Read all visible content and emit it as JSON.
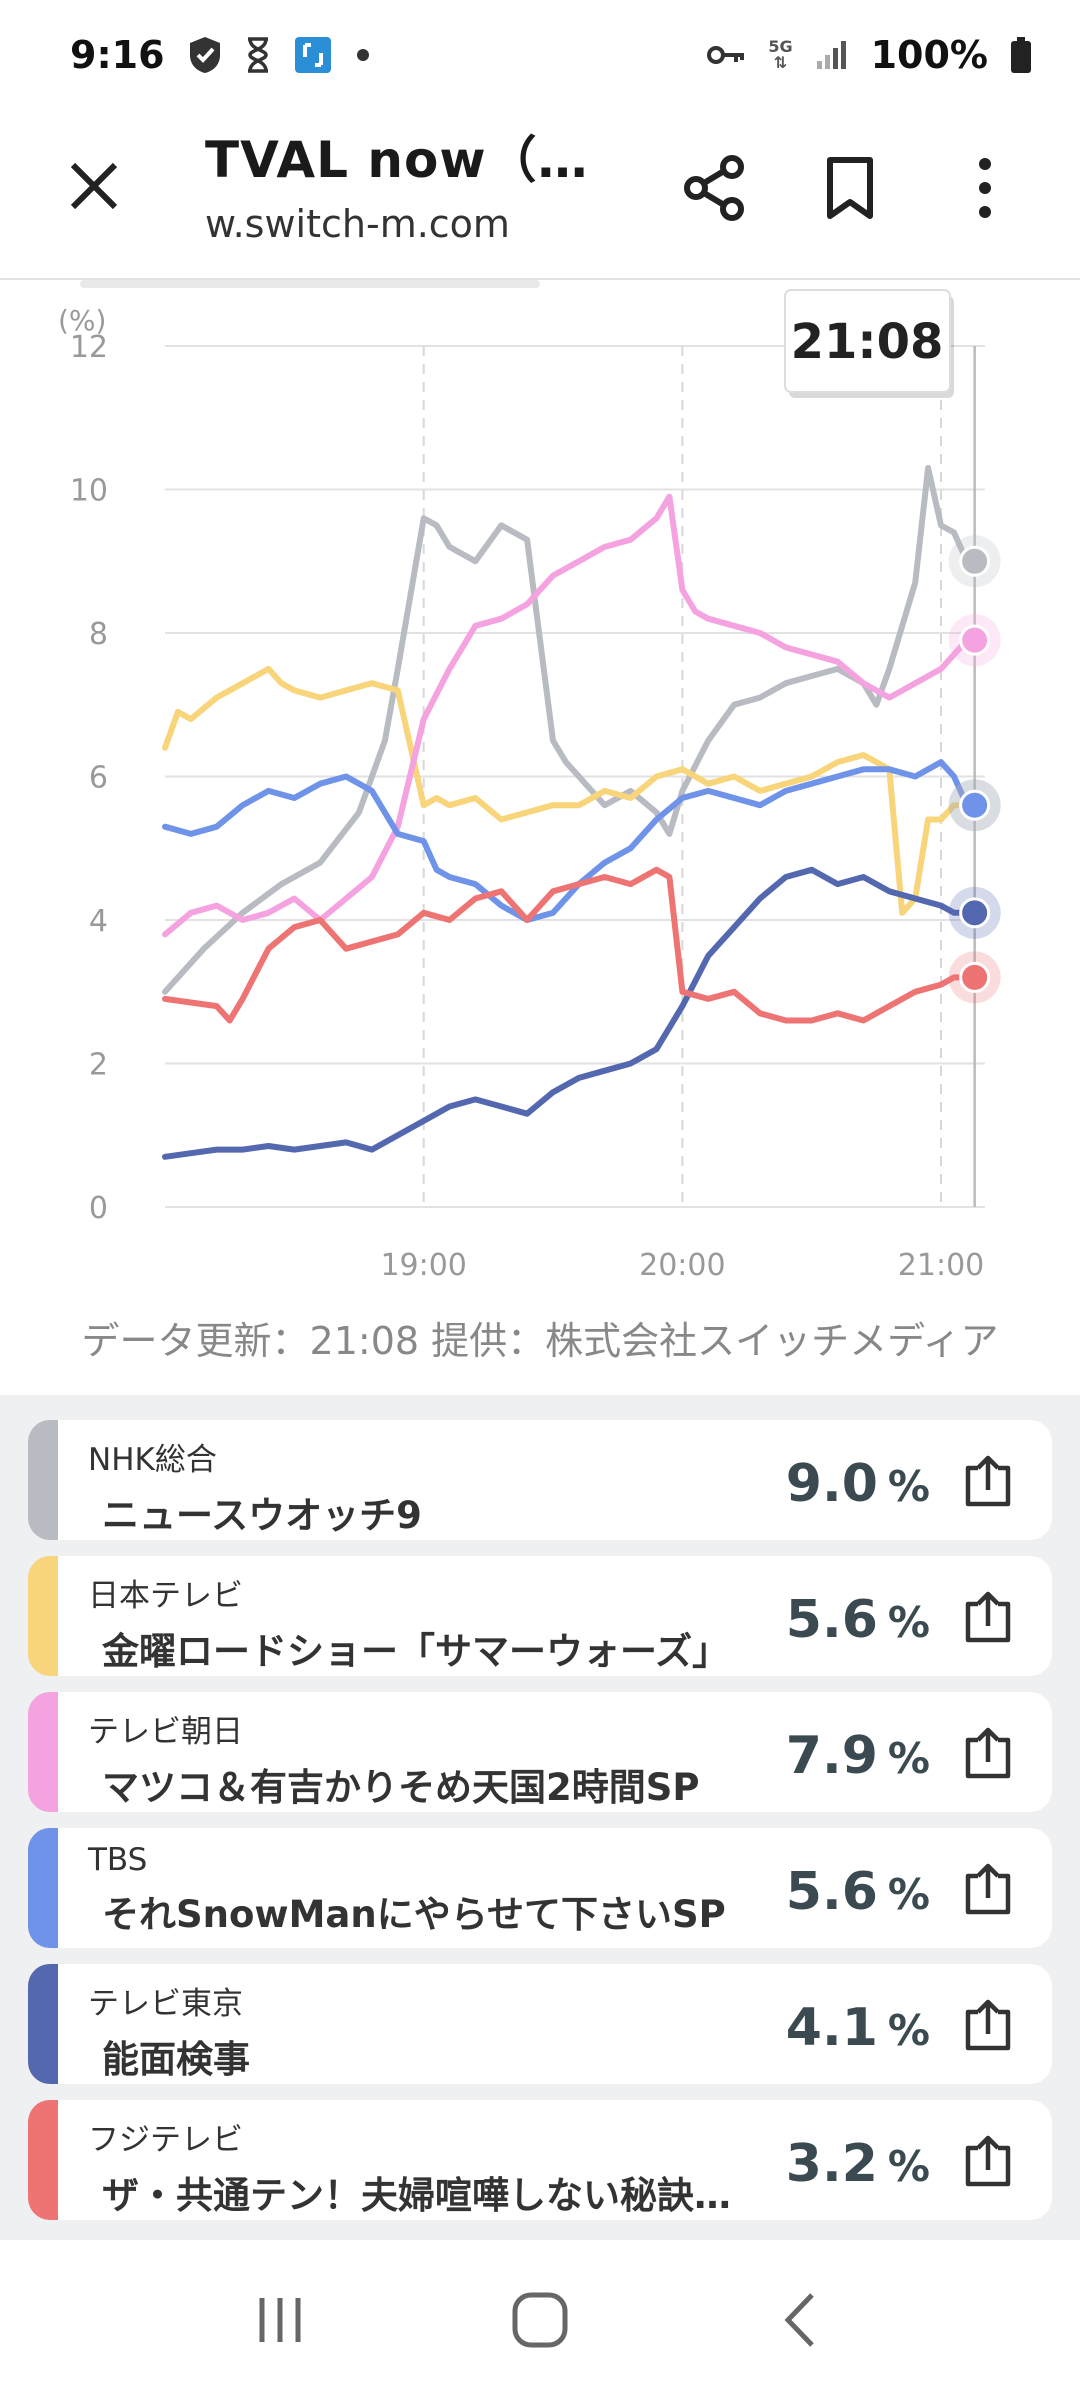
{
  "status": {
    "time": "9:16",
    "battery": "100%",
    "network": "5G",
    "icons": [
      "shield-icon",
      "hourglass-icon",
      "app-badge-icon",
      "dot-icon",
      "key-icon",
      "5g-icon",
      "signal-icon",
      "battery-icon"
    ]
  },
  "toolbar": {
    "title": "TVAL now（…",
    "url": "w.switch-m.com",
    "close_icon": "close-icon",
    "share_icon": "share-icon",
    "bookmark_icon": "bookmark-icon",
    "menu_icon": "more-vert-icon"
  },
  "chart_data": {
    "type": "line",
    "tooltip": "21:08",
    "yunit": "(%)",
    "ylim": [
      0,
      12
    ],
    "yticks": [
      "0",
      "2",
      "4",
      "6",
      "8",
      "10",
      "12"
    ],
    "xticks": [
      {
        "t": 19,
        "label": "19:00"
      },
      {
        "t": 20,
        "label": "20:00"
      },
      {
        "t": 21,
        "label": "21:00"
      }
    ],
    "xlim": [
      18.0,
      21.17
    ],
    "cursor_x": 21.13,
    "series": [
      {
        "color": "#b8bcc2",
        "x": [
          18,
          18.15,
          18.3,
          18.45,
          18.6,
          18.75,
          18.85,
          18.9,
          19,
          19.05,
          19.1,
          19.2,
          19.3,
          19.4,
          19.5,
          19.55,
          19.6,
          19.7,
          19.8,
          19.9,
          19.95,
          20,
          20.1,
          20.2,
          20.3,
          20.4,
          20.5,
          20.6,
          20.7,
          20.75,
          20.8,
          20.9,
          20.95,
          21,
          21.05,
          21.1
        ],
        "y": [
          3.0,
          3.6,
          4.1,
          4.5,
          4.8,
          5.5,
          6.5,
          7.5,
          9.6,
          9.5,
          9.2,
          9.0,
          9.5,
          9.3,
          6.5,
          6.2,
          6.0,
          5.6,
          5.8,
          5.5,
          5.2,
          5.8,
          6.5,
          7.0,
          7.1,
          7.3,
          7.4,
          7.5,
          7.3,
          7.0,
          7.5,
          8.7,
          10.3,
          9.5,
          9.4,
          9.0
        ]
      },
      {
        "color": "#f8d57a",
        "x": [
          18,
          18.05,
          18.1,
          18.2,
          18.3,
          18.4,
          18.45,
          18.5,
          18.6,
          18.7,
          18.8,
          18.9,
          19,
          19.05,
          19.1,
          19.2,
          19.3,
          19.4,
          19.5,
          19.6,
          19.7,
          19.8,
          19.9,
          20,
          20.1,
          20.2,
          20.3,
          20.4,
          20.5,
          20.6,
          20.7,
          20.8,
          20.85,
          20.9,
          20.95,
          21,
          21.05,
          21.1
        ],
        "y": [
          6.4,
          6.9,
          6.8,
          7.1,
          7.3,
          7.5,
          7.3,
          7.2,
          7.1,
          7.2,
          7.3,
          7.2,
          5.6,
          5.7,
          5.6,
          5.7,
          5.4,
          5.5,
          5.6,
          5.6,
          5.8,
          5.7,
          6.0,
          6.1,
          5.9,
          6.0,
          5.8,
          5.9,
          6.0,
          6.2,
          6.3,
          6.1,
          4.1,
          4.3,
          5.4,
          5.4,
          5.6,
          5.6
        ]
      },
      {
        "color": "#f5a3e0",
        "x": [
          18,
          18.1,
          18.2,
          18.3,
          18.4,
          18.5,
          18.6,
          18.7,
          18.8,
          18.9,
          19,
          19.1,
          19.2,
          19.3,
          19.4,
          19.5,
          19.6,
          19.7,
          19.8,
          19.9,
          19.95,
          20,
          20.05,
          20.1,
          20.2,
          20.3,
          20.4,
          20.5,
          20.6,
          20.7,
          20.8,
          20.9,
          21,
          21.05,
          21.1
        ],
        "y": [
          3.8,
          4.1,
          4.2,
          4.0,
          4.1,
          4.3,
          4.0,
          4.3,
          4.6,
          5.3,
          6.8,
          7.5,
          8.1,
          8.2,
          8.4,
          8.8,
          9.0,
          9.2,
          9.3,
          9.6,
          9.9,
          8.6,
          8.3,
          8.2,
          8.1,
          8.0,
          7.8,
          7.7,
          7.6,
          7.3,
          7.1,
          7.3,
          7.5,
          7.7,
          7.9
        ]
      },
      {
        "color": "#6e93e8",
        "x": [
          18,
          18.1,
          18.2,
          18.3,
          18.4,
          18.5,
          18.6,
          18.7,
          18.8,
          18.9,
          19,
          19.05,
          19.1,
          19.2,
          19.3,
          19.4,
          19.5,
          19.6,
          19.7,
          19.8,
          19.9,
          20,
          20.1,
          20.2,
          20.3,
          20.4,
          20.5,
          20.6,
          20.7,
          20.8,
          20.9,
          21,
          21.05,
          21.1
        ],
        "y": [
          5.3,
          5.2,
          5.3,
          5.6,
          5.8,
          5.7,
          5.9,
          6.0,
          5.8,
          5.2,
          5.1,
          4.7,
          4.6,
          4.5,
          4.2,
          4.0,
          4.1,
          4.5,
          4.8,
          5.0,
          5.4,
          5.7,
          5.8,
          5.7,
          5.6,
          5.8,
          5.9,
          6.0,
          6.1,
          6.1,
          6.0,
          6.2,
          6.0,
          5.6
        ]
      },
      {
        "color": "#5468b0",
        "x": [
          18,
          18.1,
          18.2,
          18.3,
          18.4,
          18.5,
          18.6,
          18.7,
          18.8,
          18.9,
          19,
          19.1,
          19.2,
          19.3,
          19.4,
          19.5,
          19.6,
          19.7,
          19.8,
          19.9,
          20,
          20.1,
          20.2,
          20.3,
          20.4,
          20.5,
          20.6,
          20.7,
          20.8,
          20.9,
          21,
          21.05,
          21.1
        ],
        "y": [
          0.7,
          0.75,
          0.8,
          0.8,
          0.85,
          0.8,
          0.85,
          0.9,
          0.8,
          1.0,
          1.2,
          1.4,
          1.5,
          1.4,
          1.3,
          1.6,
          1.8,
          1.9,
          2.0,
          2.2,
          2.8,
          3.5,
          3.9,
          4.3,
          4.6,
          4.7,
          4.5,
          4.6,
          4.4,
          4.3,
          4.2,
          4.1,
          4.1
        ]
      },
      {
        "color": "#ee7373",
        "x": [
          18,
          18.1,
          18.2,
          18.25,
          18.3,
          18.4,
          18.5,
          18.6,
          18.7,
          18.8,
          18.9,
          19,
          19.1,
          19.2,
          19.3,
          19.4,
          19.5,
          19.6,
          19.7,
          19.8,
          19.9,
          19.95,
          20,
          20.1,
          20.2,
          20.3,
          20.4,
          20.5,
          20.6,
          20.7,
          20.8,
          20.9,
          21,
          21.05,
          21.1
        ],
        "y": [
          2.9,
          2.85,
          2.8,
          2.6,
          2.9,
          3.6,
          3.9,
          4.0,
          3.6,
          3.7,
          3.8,
          4.1,
          4.0,
          4.3,
          4.4,
          4.0,
          4.4,
          4.5,
          4.6,
          4.5,
          4.7,
          4.6,
          3.0,
          2.9,
          3.0,
          2.7,
          2.6,
          2.6,
          2.7,
          2.6,
          2.8,
          3.0,
          3.1,
          3.2,
          3.2
        ]
      }
    ]
  },
  "chart_footer": "データ更新：21:08  提供：株式会社スイッチメディア",
  "channels": [
    {
      "channel": "NHK総合",
      "program": "ニュースウオッチ9",
      "value": "9.0",
      "unit": "%",
      "color": "#b8bcc2"
    },
    {
      "channel": "日本テレビ",
      "program": "金曜ロードショー「サマーウォーズ」",
      "value": "5.6",
      "unit": "%",
      "color": "#f8d57a"
    },
    {
      "channel": "テレビ朝日",
      "program": "マツコ＆有吉かりそめ天国2時間SP",
      "value": "7.9",
      "unit": "%",
      "color": "#f5a3e0"
    },
    {
      "channel": "TBS",
      "program": "それSnowManにやらせて下さいSP",
      "value": "5.6",
      "unit": "%",
      "color": "#6e93e8"
    },
    {
      "channel": "テレビ東京",
      "program": "能面検事",
      "value": "4.1",
      "unit": "%",
      "color": "#5468b0"
    },
    {
      "channel": "フジテレビ",
      "program": "ザ・共通テン！夫婦喧嘩しない秘訣…",
      "value": "3.2",
      "unit": "%",
      "color": "#ee7373"
    }
  ],
  "navbar": {
    "recents_icon": "recents-icon",
    "home_icon": "home-icon",
    "back_icon": "back-icon"
  }
}
